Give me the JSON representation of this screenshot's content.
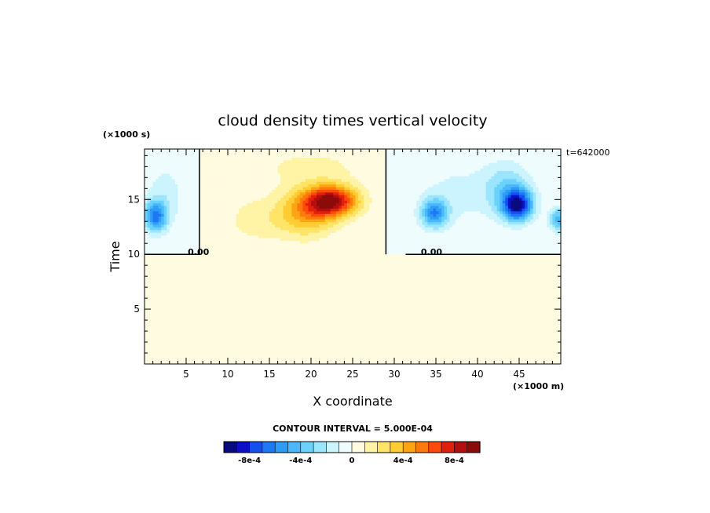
{
  "chart_data": {
    "type": "heatmap",
    "title": "cloud density times vertical velocity",
    "xlabel": "X coordinate",
    "ylabel": "Time",
    "x_unit": "(×1000 m)",
    "y_unit": "(×1000 s)",
    "time_label": "t=642000",
    "xlim": [
      0,
      50
    ],
    "ylim": [
      0,
      19.6
    ],
    "xticks": [
      {
        "value": 5,
        "label": "5"
      },
      {
        "value": 10,
        "label": "10"
      },
      {
        "value": 15,
        "label": "15"
      },
      {
        "value": 20,
        "label": "20"
      },
      {
        "value": 25,
        "label": "25"
      },
      {
        "value": 30,
        "label": "30"
      },
      {
        "value": 35,
        "label": "35"
      },
      {
        "value": 40,
        "label": "40"
      },
      {
        "value": 45,
        "label": "45"
      }
    ],
    "yticks": [
      {
        "value": 5,
        "label": "5"
      },
      {
        "value": 10,
        "label": "10"
      },
      {
        "value": 15,
        "label": "15"
      }
    ],
    "contour_labels": [
      {
        "text": "0.00",
        "x": 5.2,
        "y": 10.1
      },
      {
        "text": "0.00",
        "x": 33.2,
        "y": 10.1
      }
    ],
    "contour_interval_text": "CONTOUR INTERVAL = 5.000E-04",
    "colorbar": {
      "levels": [
        -0.0009,
        -0.0008,
        -0.0007,
        -0.0006,
        -0.0005,
        -0.0004,
        -0.0003,
        -0.0002,
        -0.0001,
        0,
        0.0001,
        0.0002,
        0.0003,
        0.0004,
        0.0005,
        0.0006,
        0.0007,
        0.0008,
        0.0009,
        0.001
      ],
      "colors": [
        "#0a0a80",
        "#0b10c8",
        "#1450f0",
        "#1e78f5",
        "#2c9cf7",
        "#4ab8fa",
        "#6ad2fc",
        "#9ce6fd",
        "#ccf4fe",
        "#eefcfe",
        "#fffbe0",
        "#fff3a6",
        "#ffe468",
        "#ffcc33",
        "#ffa514",
        "#ff7a0c",
        "#ff4a0a",
        "#e0200a",
        "#b40e0e",
        "#8c0a0a"
      ],
      "tick_labels": [
        {
          "value": -0.0008,
          "label": "-8e-4"
        },
        {
          "value": -0.0004,
          "label": "-4e-4"
        },
        {
          "value": 0,
          "label": "0"
        },
        {
          "value": 0.0004,
          "label": "4e-4"
        },
        {
          "value": 0.0008,
          "label": "8e-4"
        }
      ]
    },
    "fill_below_color": "#fffbe0",
    "features": [
      {
        "name": "positive-cell",
        "x": 22.5,
        "y": 14.9,
        "sx": 3.2,
        "sy": 1.4,
        "amp": 0.00085
      },
      {
        "name": "positive-cell",
        "x": 19.5,
        "y": 13.8,
        "sx": 3.5,
        "sy": 2.2,
        "amp": 0.0004
      },
      {
        "name": "positive-cell",
        "x": 13.5,
        "y": 13.2,
        "sx": 4.0,
        "sy": 2.2,
        "amp": 0.00015
      },
      {
        "name": "positive-cell",
        "x": 20.0,
        "y": 18.0,
        "sx": 7.0,
        "sy": 1.8,
        "amp": 0.00013
      },
      {
        "name": "negative-cell",
        "x": 44.8,
        "y": 14.5,
        "sx": 1.8,
        "sy": 1.4,
        "amp": -0.00085
      },
      {
        "name": "negative-cell",
        "x": 43.5,
        "y": 16.0,
        "sx": 3.0,
        "sy": 2.4,
        "amp": -0.0003
      },
      {
        "name": "negative-cell",
        "x": 34.8,
        "y": 13.8,
        "sx": 1.6,
        "sy": 1.3,
        "amp": -0.00055
      },
      {
        "name": "negative-cell",
        "x": 37.0,
        "y": 15.5,
        "sx": 4.5,
        "sy": 3.5,
        "amp": -0.00012
      },
      {
        "name": "negative-cell",
        "x": 49.8,
        "y": 13.2,
        "sx": 1.2,
        "sy": 1.1,
        "amp": -0.00045
      },
      {
        "name": "negative-cell",
        "x": 1.3,
        "y": 13.5,
        "sx": 1.4,
        "sy": 1.4,
        "amp": -0.0006
      },
      {
        "name": "negative-cell",
        "x": 2.5,
        "y": 15.5,
        "sx": 2.5,
        "sy": 3.0,
        "amp": -0.00015
      }
    ],
    "zero_contour_x": [
      6.6,
      29.0
    ],
    "active_y_range": [
      10,
      19.6
    ],
    "grid": false,
    "legend": "bottom"
  }
}
